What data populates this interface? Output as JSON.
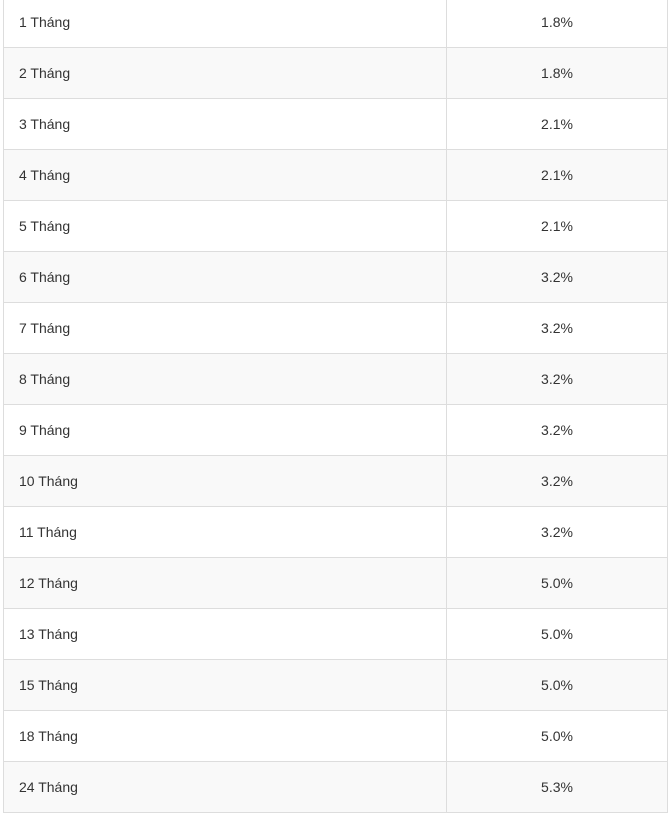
{
  "rates_table": {
    "rows": [
      {
        "term": "1 Tháng",
        "rate": "1.8%"
      },
      {
        "term": "2 Tháng",
        "rate": "1.8%"
      },
      {
        "term": "3 Tháng",
        "rate": "2.1%"
      },
      {
        "term": "4 Tháng",
        "rate": "2.1%"
      },
      {
        "term": "5 Tháng",
        "rate": "2.1%"
      },
      {
        "term": "6 Tháng",
        "rate": "3.2%"
      },
      {
        "term": "7 Tháng",
        "rate": "3.2%"
      },
      {
        "term": "8 Tháng",
        "rate": "3.2%"
      },
      {
        "term": "9 Tháng",
        "rate": "3.2%"
      },
      {
        "term": "10 Tháng",
        "rate": "3.2%"
      },
      {
        "term": "11 Tháng",
        "rate": "3.2%"
      },
      {
        "term": "12 Tháng",
        "rate": "5.0%"
      },
      {
        "term": "13 Tháng",
        "rate": "5.0%"
      },
      {
        "term": "15 Tháng",
        "rate": "5.0%"
      },
      {
        "term": "18 Tháng",
        "rate": "5.0%"
      },
      {
        "term": "24 Tháng",
        "rate": "5.3%"
      }
    ]
  }
}
